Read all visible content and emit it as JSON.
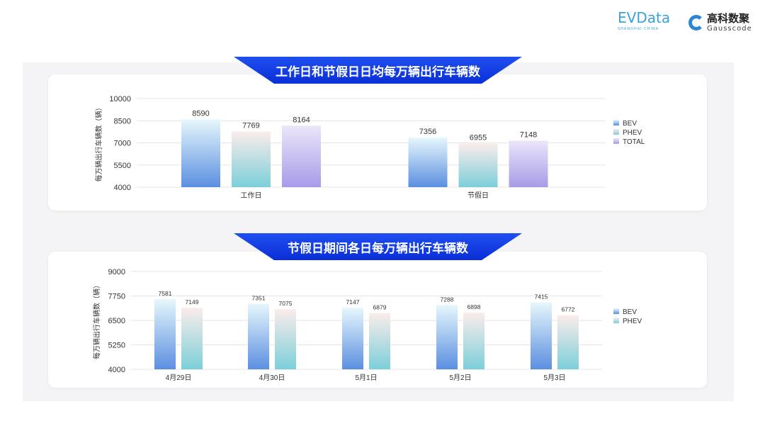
{
  "logos": {
    "evdata": "EVData",
    "evdata_sub": "SHANGHAI CHINA",
    "gauss_cn": "高科数聚",
    "gauss_en": "Gausscode"
  },
  "colors": {
    "banner": "#1a44e6",
    "BEV": [
      "#e6f7fc",
      "#5b8fe0"
    ],
    "PHEV": [
      "#fbeceb",
      "#7ccfd9"
    ],
    "TOTAL": [
      "#ebe6fa",
      "#a79be8"
    ]
  },
  "chart_data": [
    {
      "type": "bar",
      "title": "工作日和节假日日均每万辆出行车辆数",
      "ylabel": "每万辆出行车辆数（辆）",
      "categories": [
        "工作日",
        "节假日"
      ],
      "ylim": [
        4000,
        10000
      ],
      "yticks": [
        4000,
        5500,
        7000,
        8500,
        10000
      ],
      "grid": true,
      "legend": "right",
      "series": [
        {
          "name": "BEV",
          "values": [
            8590,
            7356
          ]
        },
        {
          "name": "PHEV",
          "values": [
            7769,
            6955
          ]
        },
        {
          "name": "TOTAL",
          "values": [
            8164,
            7148
          ]
        }
      ]
    },
    {
      "type": "bar",
      "title": "节假日期间各日每万辆出行车辆数",
      "ylabel": "每万辆出行车辆数（辆）",
      "categories": [
        "4月29日",
        "4月30日",
        "5月1日",
        "5月2日",
        "5月3日"
      ],
      "ylim": [
        4000,
        9000
      ],
      "yticks": [
        4000,
        5250,
        6500,
        7750,
        9000
      ],
      "grid": true,
      "legend": "right",
      "series": [
        {
          "name": "BEV",
          "values": [
            7581,
            7351,
            7147,
            7288,
            7415
          ]
        },
        {
          "name": "PHEV",
          "values": [
            7149,
            7075,
            6879,
            6898,
            6772
          ]
        }
      ]
    }
  ]
}
